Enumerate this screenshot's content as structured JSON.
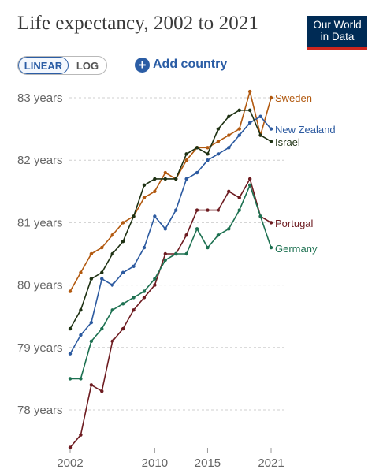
{
  "header": {
    "title": "Life expectancy, 2002 to 2021",
    "logo_line1": "Our World",
    "logo_line2": "in Data",
    "scale_linear": "LINEAR",
    "scale_log": "LOG",
    "add_country": "Add country"
  },
  "chart_data": {
    "type": "line",
    "title": "Life expectancy, 2002 to 2021",
    "x": [
      2002,
      2003,
      2004,
      2005,
      2006,
      2007,
      2008,
      2009,
      2010,
      2011,
      2012,
      2013,
      2014,
      2015,
      2016,
      2017,
      2018,
      2019,
      2020,
      2021
    ],
    "ylim": [
      77.3,
      83.3
    ],
    "xlim": [
      2002,
      2021
    ],
    "y_ticks": [
      78,
      79,
      80,
      81,
      82,
      83
    ],
    "y_tick_labels": [
      "78 years",
      "79 years",
      "80 years",
      "81 years",
      "82 years",
      "83 years"
    ],
    "x_ticks": [
      2002,
      2010,
      2015,
      2021
    ],
    "x_tick_labels": [
      "2002",
      "2010",
      "2015",
      "2021"
    ],
    "grid": "horizontal dashed",
    "series": [
      {
        "name": "Sweden",
        "color": "#b2590f",
        "values": [
          79.9,
          80.2,
          80.5,
          80.6,
          80.8,
          81.0,
          81.1,
          81.4,
          81.5,
          81.8,
          81.7,
          82.0,
          82.2,
          82.2,
          82.3,
          82.4,
          82.5,
          83.1,
          82.4,
          83.0
        ]
      },
      {
        "name": "New Zealand",
        "color": "#2c5aa0",
        "values": [
          78.9,
          79.2,
          79.4,
          80.1,
          80.0,
          80.2,
          80.3,
          80.6,
          81.1,
          80.9,
          81.2,
          81.7,
          81.8,
          82.0,
          82.1,
          82.2,
          82.4,
          82.6,
          82.7,
          82.5
        ]
      },
      {
        "name": "Israel",
        "color": "#1e3113",
        "values": [
          79.3,
          79.6,
          80.1,
          80.2,
          80.5,
          80.7,
          81.1,
          81.6,
          81.7,
          81.7,
          81.7,
          82.1,
          82.2,
          82.1,
          82.5,
          82.7,
          82.8,
          82.8,
          82.4,
          82.3
        ]
      },
      {
        "name": "Portugal",
        "color": "#6d1b20",
        "values": [
          77.4,
          77.6,
          78.4,
          78.3,
          79.1,
          79.3,
          79.6,
          79.8,
          80.0,
          80.5,
          80.5,
          80.8,
          81.2,
          81.2,
          81.2,
          81.5,
          81.4,
          81.7,
          81.1,
          81.0
        ]
      },
      {
        "name": "Germany",
        "color": "#1d7151",
        "values": [
          78.5,
          78.5,
          79.1,
          79.3,
          79.6,
          79.7,
          79.8,
          79.9,
          80.1,
          80.4,
          80.5,
          80.5,
          80.9,
          80.6,
          80.8,
          80.9,
          81.2,
          81.6,
          81.1,
          80.6
        ]
      }
    ]
  }
}
